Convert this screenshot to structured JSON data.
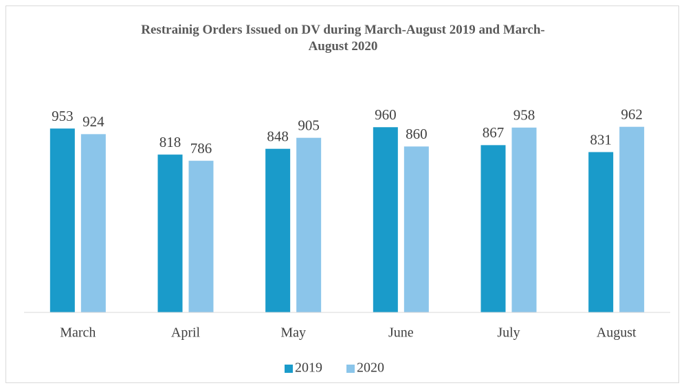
{
  "chart_data": {
    "type": "bar",
    "title": "Restrainig Orders Issued on DV during March-August 2019 and March-August 2020",
    "categories": [
      "March",
      "April",
      "May",
      "June",
      "July",
      "August"
    ],
    "series": [
      {
        "name": "2019",
        "color": "#1a9bca",
        "values": [
          953,
          818,
          848,
          960,
          867,
          831
        ]
      },
      {
        "name": "2020",
        "color": "#8bc5ea",
        "values": [
          924,
          786,
          905,
          860,
          958,
          962
        ]
      }
    ],
    "ylim": [
      0,
      1000
    ],
    "legend": "bottom"
  }
}
